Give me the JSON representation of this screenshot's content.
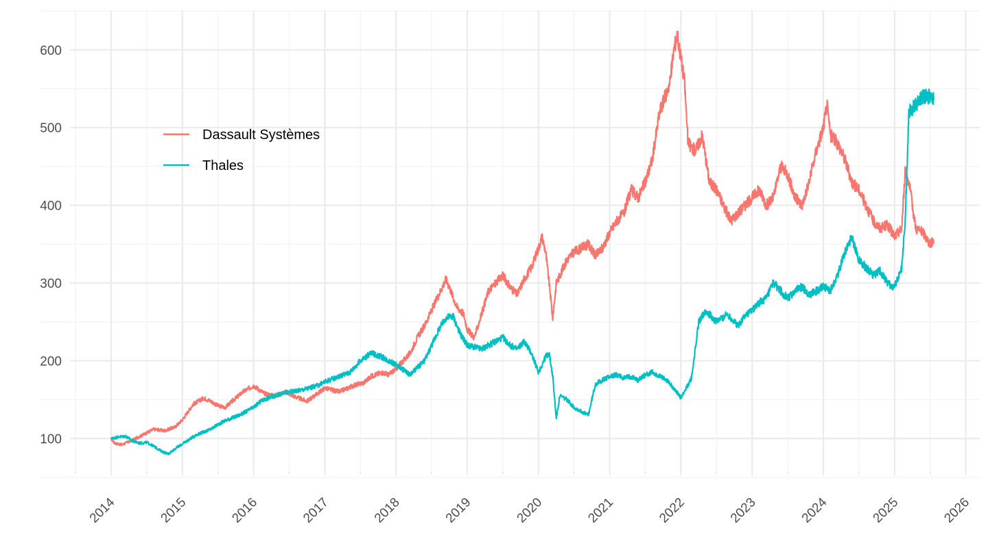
{
  "chart_data": {
    "type": "line",
    "title": "",
    "xlabel": "",
    "ylabel": "",
    "x_ticks": [
      "2014",
      "2015",
      "2016",
      "2017",
      "2018",
      "2019",
      "2020",
      "2021",
      "2022",
      "2023",
      "2024",
      "2025",
      "2026"
    ],
    "y_ticks": [
      "100",
      "200",
      "300",
      "400",
      "500",
      "600"
    ],
    "xlim": [
      2013.5,
      2026.1
    ],
    "ylim": [
      52,
      645
    ],
    "grid": true,
    "legend_position": "top-left, inside plot",
    "series": [
      {
        "name": "Dassault Systèmes",
        "color": "#F8766D",
        "x": [
          2014.0,
          2014.05,
          2014.15,
          2014.3,
          2014.45,
          2014.6,
          2014.75,
          2014.9,
          2015.0,
          2015.15,
          2015.3,
          2015.4,
          2015.5,
          2015.6,
          2015.7,
          2015.85,
          2016.0,
          2016.15,
          2016.3,
          2016.45,
          2016.6,
          2016.75,
          2016.9,
          2017.0,
          2017.2,
          2017.4,
          2017.55,
          2017.65,
          2017.8,
          2017.9,
          2018.0,
          2018.1,
          2018.2,
          2018.3,
          2018.4,
          2018.5,
          2018.6,
          2018.7,
          2018.75,
          2018.85,
          2018.95,
          2019.0,
          2019.1,
          2019.2,
          2019.3,
          2019.4,
          2019.5,
          2019.6,
          2019.7,
          2019.8,
          2019.9,
          2020.0,
          2020.05,
          2020.1,
          2020.15,
          2020.2,
          2020.25,
          2020.3,
          2020.4,
          2020.5,
          2020.6,
          2020.7,
          2020.8,
          2020.9,
          2021.0,
          2021.1,
          2021.2,
          2021.3,
          2021.4,
          2021.5,
          2021.6,
          2021.7,
          2021.8,
          2021.85,
          2021.9,
          2021.95,
          2022.0,
          2022.05,
          2022.1,
          2022.2,
          2022.3,
          2022.4,
          2022.5,
          2022.6,
          2022.7,
          2022.8,
          2022.9,
          2023.0,
          2023.1,
          2023.2,
          2023.3,
          2023.4,
          2023.5,
          2023.6,
          2023.7,
          2023.8,
          2023.9,
          2024.0,
          2024.05,
          2024.1,
          2024.2,
          2024.3,
          2024.4,
          2024.5,
          2024.6,
          2024.7,
          2024.8,
          2024.9,
          2025.0,
          2025.1,
          2025.15,
          2025.2,
          2025.3,
          2025.4,
          2025.5,
          2025.55
        ],
        "values": [
          100,
          94,
          92,
          98,
          105,
          112,
          110,
          115,
          124,
          144,
          152,
          148,
          142,
          140,
          148,
          160,
          168,
          158,
          155,
          160,
          153,
          148,
          158,
          165,
          160,
          168,
          172,
          180,
          185,
          182,
          190,
          200,
          210,
          230,
          245,
          265,
          285,
          305,
          295,
          270,
          260,
          240,
          230,
          260,
          290,
          300,
          310,
          295,
          285,
          305,
          320,
          345,
          360,
          340,
          300,
          255,
          300,
          310,
          330,
          340,
          345,
          350,
          335,
          345,
          365,
          380,
          390,
          420,
          410,
          430,
          460,
          520,
          545,
          560,
          600,
          620,
          590,
          560,
          480,
          470,
          490,
          430,
          420,
          400,
          380,
          390,
          400,
          410,
          420,
          400,
          410,
          450,
          440,
          410,
          400,
          430,
          470,
          500,
          530,
          490,
          480,
          460,
          430,
          420,
          400,
          380,
          370,
          375,
          360,
          370,
          445,
          430,
          370,
          365,
          350,
          355
        ]
      },
      {
        "name": "Thales",
        "color": "#00BFC4",
        "x": [
          2014.0,
          2014.1,
          2014.2,
          2014.3,
          2014.4,
          2014.5,
          2014.6,
          2014.7,
          2014.8,
          2014.9,
          2015.0,
          2015.2,
          2015.4,
          2015.5,
          2015.6,
          2015.8,
          2016.0,
          2016.1,
          2016.2,
          2016.3,
          2016.5,
          2016.7,
          2016.9,
          2017.0,
          2017.2,
          2017.35,
          2017.5,
          2017.65,
          2017.8,
          2017.9,
          2018.0,
          2018.2,
          2018.4,
          2018.6,
          2018.7,
          2018.8,
          2018.9,
          2019.0,
          2019.2,
          2019.4,
          2019.5,
          2019.6,
          2019.7,
          2019.8,
          2019.9,
          2020.0,
          2020.1,
          2020.15,
          2020.2,
          2020.25,
          2020.3,
          2020.4,
          2020.5,
          2020.6,
          2020.7,
          2020.8,
          2020.9,
          2021.0,
          2021.1,
          2021.2,
          2021.3,
          2021.4,
          2021.5,
          2021.6,
          2021.7,
          2021.8,
          2021.9,
          2022.0,
          2022.05,
          2022.15,
          2022.25,
          2022.35,
          2022.5,
          2022.65,
          2022.8,
          2022.9,
          2023.0,
          2023.1,
          2023.2,
          2023.3,
          2023.4,
          2023.5,
          2023.6,
          2023.7,
          2023.8,
          2023.9,
          2024.0,
          2024.1,
          2024.2,
          2024.3,
          2024.4,
          2024.5,
          2024.6,
          2024.7,
          2024.8,
          2024.9,
          2025.0,
          2025.1,
          2025.15,
          2025.2,
          2025.3,
          2025.4,
          2025.5,
          2025.55
        ],
        "values": [
          100,
          102,
          103,
          97,
          94,
          95,
          90,
          84,
          80,
          87,
          93,
          105,
          112,
          118,
          123,
          130,
          140,
          148,
          152,
          155,
          160,
          163,
          168,
          173,
          180,
          185,
          200,
          210,
          205,
          200,
          195,
          182,
          200,
          240,
          255,
          258,
          235,
          220,
          215,
          225,
          230,
          220,
          215,
          225,
          210,
          185,
          205,
          210,
          180,
          125,
          155,
          150,
          140,
          135,
          130,
          170,
          175,
          180,
          182,
          178,
          180,
          175,
          182,
          185,
          180,
          175,
          165,
          152,
          160,
          178,
          250,
          265,
          250,
          260,
          245,
          258,
          265,
          275,
          280,
          300,
          290,
          280,
          290,
          295,
          285,
          290,
          295,
          290,
          310,
          340,
          360,
          330,
          320,
          310,
          315,
          300,
          295,
          320,
          380,
          520,
          530,
          540,
          540,
          535
        ]
      }
    ]
  }
}
